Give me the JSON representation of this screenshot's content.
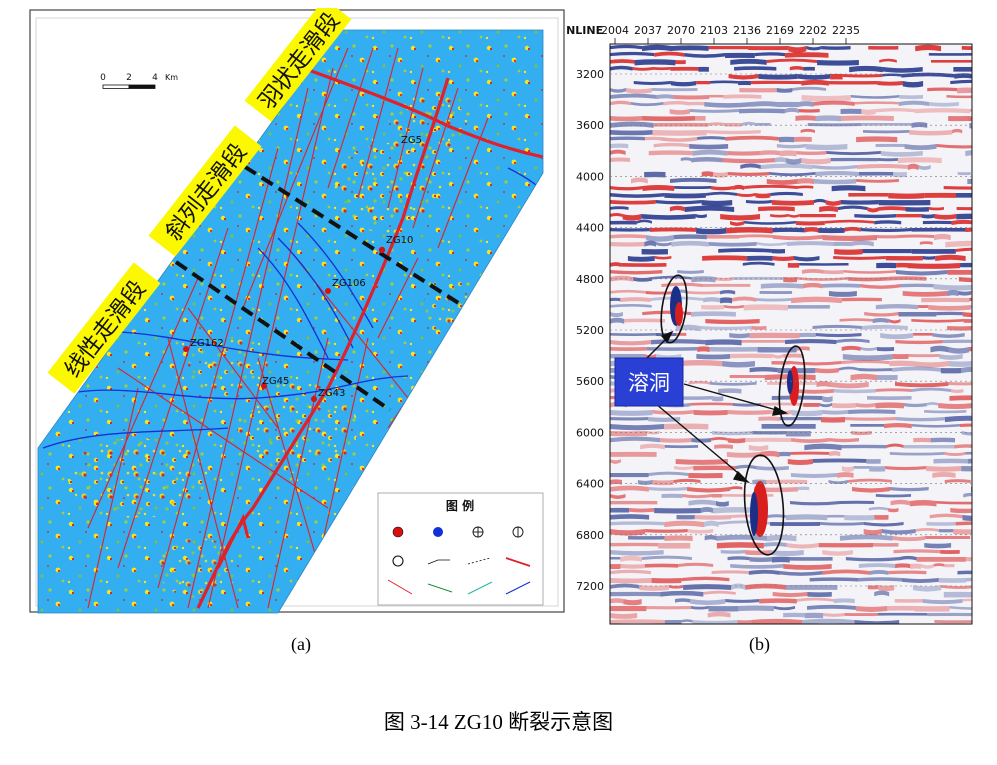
{
  "panel_a": {
    "segments": [
      "羽状走滑段",
      "斜列走滑段",
      "线性走滑段"
    ],
    "scale_bar": {
      "ticks": [
        "0",
        "2",
        "4"
      ],
      "unit": "Km"
    },
    "wells": [
      "ZG5",
      "ZG10",
      "ZG106",
      "ZG162",
      "ZG45",
      "ZG43"
    ],
    "legend": {
      "title": "图 例"
    },
    "caption": "(a)"
  },
  "panel_b": {
    "inline_prefix": "INLINE",
    "inline_ticks": [
      "2004",
      "2037",
      "2070",
      "2103",
      "2136",
      "2169",
      "2202",
      "2235"
    ],
    "depth_ticks": [
      "3200",
      "3600",
      "4000",
      "4400",
      "4800",
      "5200",
      "5600",
      "6000",
      "6400",
      "6800",
      "7200"
    ],
    "karst_label": "溶洞",
    "caption": "(b)"
  },
  "figure_caption": "图 3-14 ZG10 断裂示意图",
  "colors": {
    "map_blue": "#33aef0",
    "fault_red": "#e0202a",
    "seismic_red": "#d81e1e",
    "seismic_blue": "#1c2f86",
    "label_yellow": "#fbf800",
    "box_blue": "#2a3fd3"
  }
}
